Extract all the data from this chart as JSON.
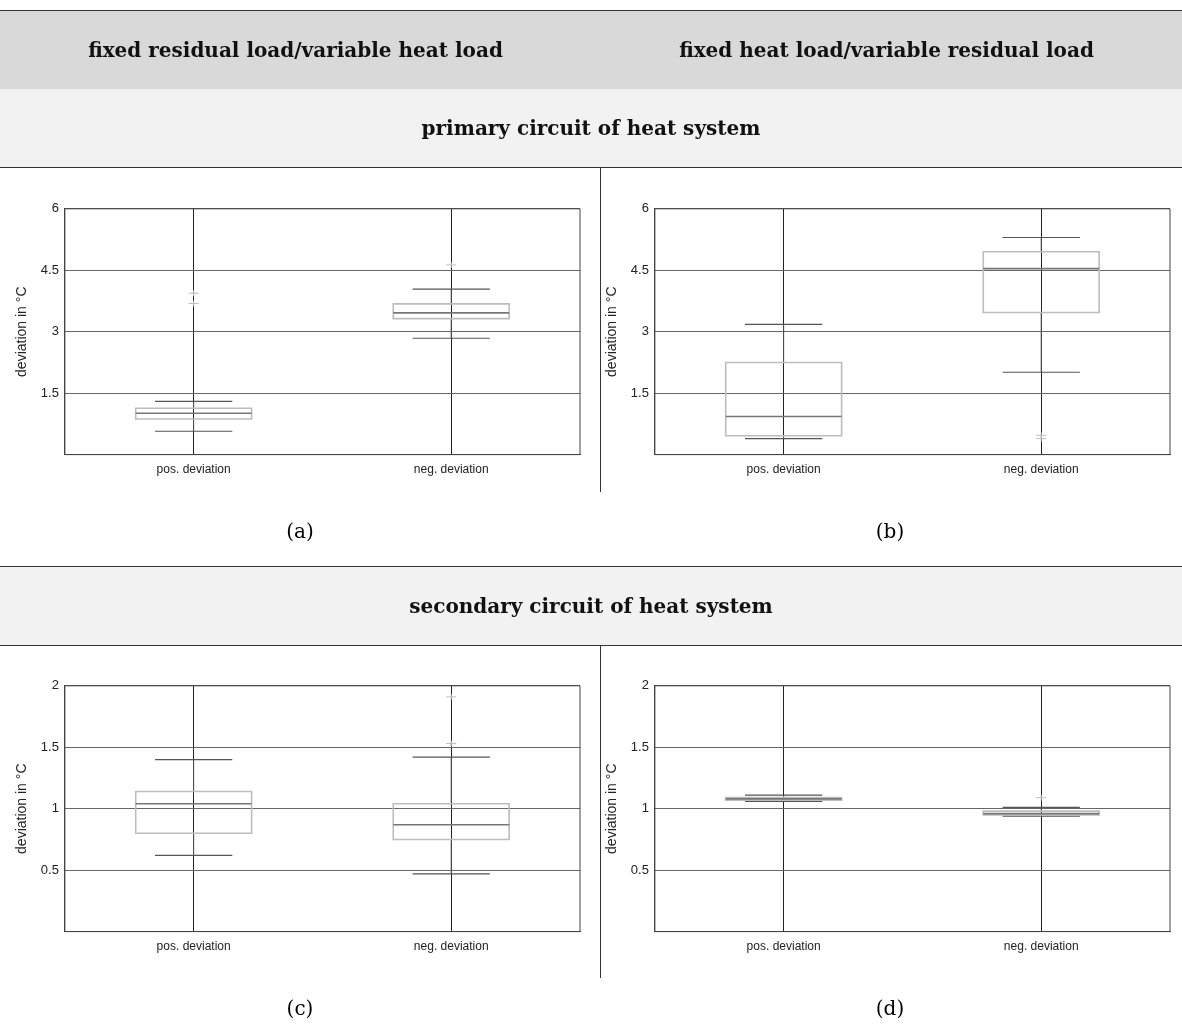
{
  "chart_data": [
    {
      "type": "box",
      "title": "(a)",
      "annotations": [
        "fixed residual load/variable heat load",
        "primary circuit of heat system"
      ],
      "ylabel": "deviation in °C",
      "categories": [
        "pos. deviation",
        "neg. deviation"
      ],
      "ylim": [
        0,
        6
      ],
      "yticks": [
        1.5,
        3,
        4.5,
        6
      ],
      "grid": true,
      "marker": "cross",
      "series": [
        {
          "color": "#bdbdbd",
          "boxes": [
            {
              "low": 0.57,
              "q1": 0.87,
              "median": 1.01,
              "q3": 1.13,
              "high": 1.3,
              "outliers": [
                3.69,
                3.94
              ]
            },
            {
              "low": 2.84,
              "q1": 3.32,
              "median": 3.46,
              "q3": 3.68,
              "high": 4.04,
              "outliers": [
                4.63
              ]
            }
          ]
        }
      ]
    },
    {
      "type": "box",
      "title": "(b)",
      "annotations": [
        "fixed heat load/variable residual load"
      ],
      "ylabel": "deviation in °C",
      "categories": [
        "pos. deviation",
        "neg. deviation"
      ],
      "ylim": [
        0,
        6
      ],
      "yticks": [
        1.5,
        3,
        4.5,
        6
      ],
      "grid": true,
      "marker": "cross",
      "series": [
        {
          "color": "#bdbdbd",
          "boxes": [
            {
              "low": 0.39,
              "q1": 0.46,
              "median": 0.93,
              "q3": 2.25,
              "high": 3.18
            },
            {
              "low": 2.01,
              "q1": 3.47,
              "median": 4.54,
              "q3": 4.95,
              "high": 5.3,
              "outliers": [
                0.39,
                0.47
              ]
            }
          ]
        }
      ]
    },
    {
      "type": "box",
      "title": "(c)",
      "annotations": [
        "secondary circuit of heat system"
      ],
      "ylabel": "deviation in °C",
      "categories": [
        "pos. deviation",
        "neg. deviation"
      ],
      "ylim": [
        0,
        2
      ],
      "yticks": [
        0.5,
        1,
        1.5,
        2
      ],
      "grid": true,
      "marker": "cross",
      "series": [
        {
          "color": "#bdbdbd",
          "boxes": [
            {
              "low": 0.62,
              "q1": 0.8,
              "median": 1.04,
              "q3": 1.14,
              "high": 1.4
            },
            {
              "low": 0.47,
              "q1": 0.75,
              "median": 0.87,
              "q3": 1.04,
              "high": 1.42,
              "outliers": [
                1.53,
                1.91
              ]
            }
          ]
        }
      ]
    },
    {
      "type": "box",
      "title": "(d)",
      "ylabel": "deviation in °C",
      "categories": [
        "pos. deviation",
        "neg. deviation"
      ],
      "ylim": [
        0,
        2
      ],
      "yticks": [
        0.5,
        1,
        1.5,
        2
      ],
      "grid": true,
      "marker": "cross",
      "series": [
        {
          "color": "#bdbdbd",
          "boxes": [
            {
              "low": 1.06,
              "q1": 1.07,
              "median": 1.08,
              "q3": 1.09,
              "high": 1.11
            },
            {
              "low": 0.94,
              "q1": 0.95,
              "median": 0.96,
              "q3": 0.98,
              "high": 1.01,
              "outliers": [
                1.09
              ]
            }
          ]
        }
      ]
    }
  ]
}
